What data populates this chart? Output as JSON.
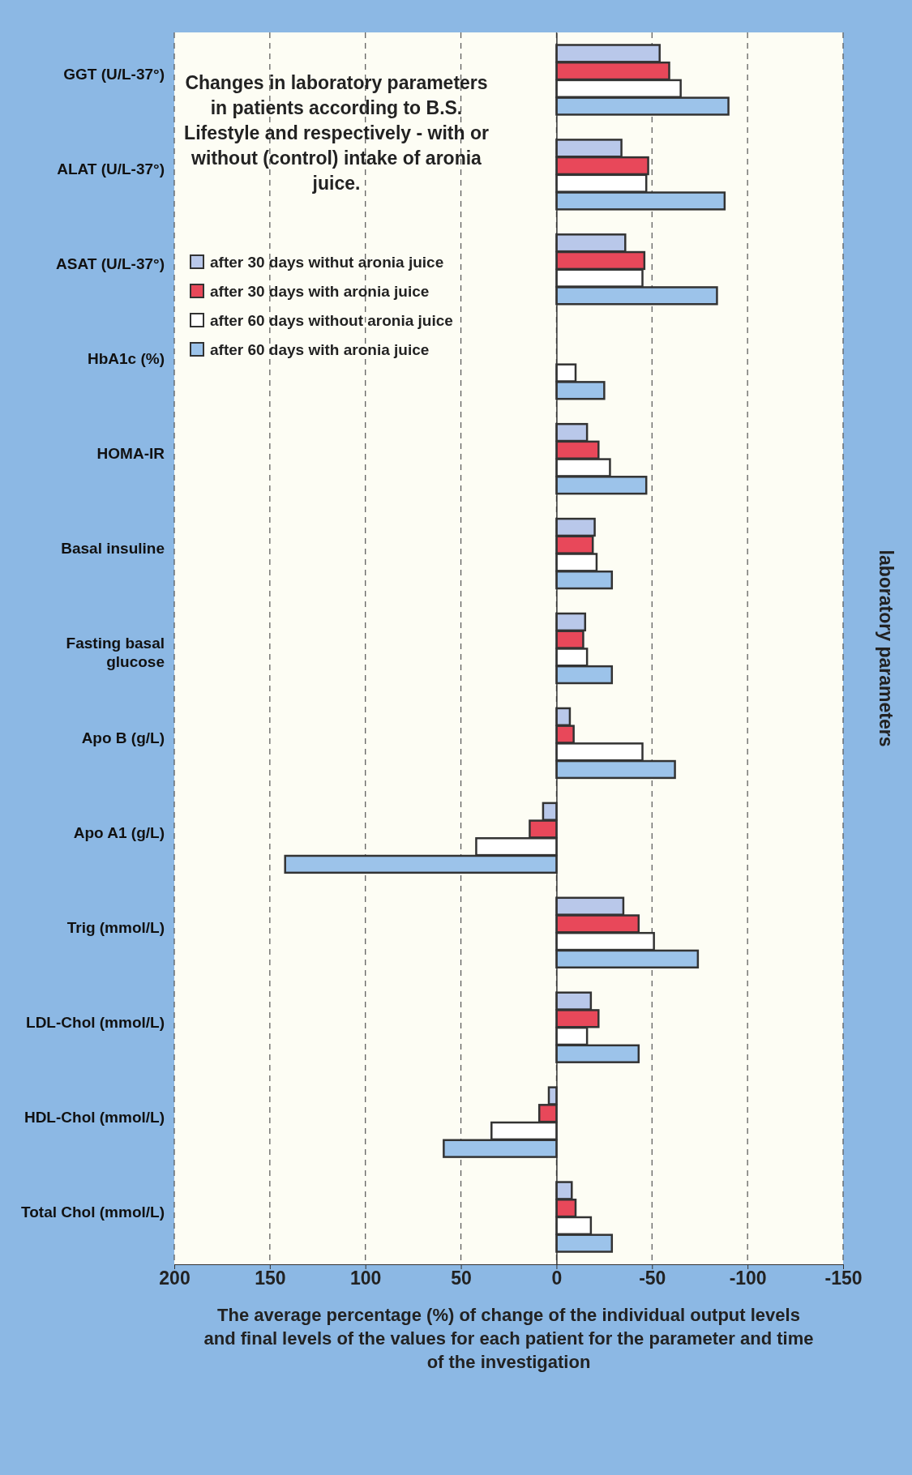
{
  "chart_data": {
    "type": "bar",
    "orientation": "horizontal",
    "title": "Changes in laboratory parameters in patients according to B.S. Lifestyle and respectively - with or without (control) intake of aronia juice.",
    "ylabel": "laboratory parameters",
    "xlabel": "The average percentage (%) of change of the individual output levels and final levels of the values for each patient for the parameter and time of the investigation",
    "categories": [
      "GGT (U/L-37°)",
      "ALAT (U/L-37°)",
      "ASAT (U/L-37°)",
      "HbA1c (%)",
      "HOMA-IR",
      "Basal insuline",
      "Fasting basal glucose",
      "Apo B (g/L)",
      "Apo A1 (g/L)",
      "Trig (mmol/L)",
      "LDL-Chol (mmol/L)",
      "HDL-Chol (mmol/L)",
      "Total Chol (mmol/L)"
    ],
    "series": [
      {
        "name": "after 30 days withut aronia juice",
        "color": "#b9c8ea",
        "values": [
          -54,
          -34,
          -36,
          null,
          -16,
          -20,
          -15,
          -7,
          7,
          -35,
          -18,
          4,
          -8
        ]
      },
      {
        "name": "after 30 days with aronia juice",
        "color": "#e8485a",
        "values": [
          -59,
          -48,
          -46,
          null,
          -22,
          -19,
          -14,
          -9,
          14,
          -43,
          -22,
          9,
          -10
        ]
      },
      {
        "name": "after 60 days without aronia juice",
        "color": "#ffffff",
        "values": [
          -65,
          -47,
          -45,
          -10,
          -28,
          -21,
          -16,
          -45,
          42,
          -51,
          -16,
          34,
          -18
        ]
      },
      {
        "name": "after 60 days with aronia juice",
        "color": "#9cc3ea",
        "values": [
          -90,
          -88,
          -84,
          -25,
          -47,
          -29,
          -29,
          -62,
          142,
          -74,
          -43,
          59,
          -29
        ]
      }
    ],
    "xlim": [
      200,
      -150
    ],
    "xticks": [
      200,
      150,
      100,
      50,
      0,
      -50,
      -100,
      -150
    ],
    "grid": "x",
    "legend": "top left"
  }
}
